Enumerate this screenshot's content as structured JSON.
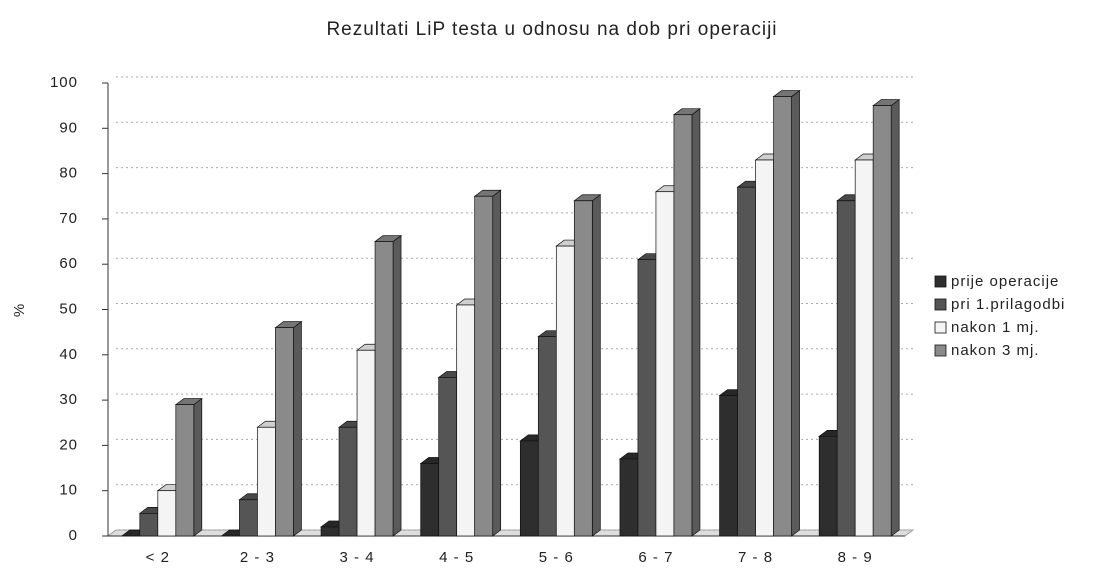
{
  "chart_data": {
    "type": "bar3d",
    "title": "Rezultati LiP testa u odnosu na dob pri operaciji",
    "ylabel": "%",
    "categories": [
      "< 2",
      "2 - 3",
      "3 - 4",
      "4 - 5",
      "5 - 6",
      "6 - 7",
      "7 - 8",
      "8 - 9"
    ],
    "series": [
      {
        "name": "prije operacije",
        "color": "#2e2e2e",
        "values": [
          0,
          0,
          2,
          16,
          21,
          17,
          31,
          22
        ]
      },
      {
        "name": "pri 1.prilagodbi",
        "color": "#555555",
        "values": [
          5,
          8,
          24,
          35,
          44,
          61,
          77,
          74
        ]
      },
      {
        "name": "nakon 1 mj.",
        "color": "#f4f4f4",
        "values": [
          10,
          24,
          41,
          51,
          64,
          76,
          83,
          83
        ]
      },
      {
        "name": "nakon 3 mj.",
        "color": "#8a8a8a",
        "values": [
          29,
          46,
          65,
          75,
          74,
          93,
          97,
          95
        ]
      }
    ],
    "ylim": [
      0,
      100
    ],
    "yticks": [
      0,
      10,
      20,
      30,
      40,
      50,
      60,
      70,
      80,
      90,
      100
    ],
    "grid": true,
    "legend": "right"
  }
}
